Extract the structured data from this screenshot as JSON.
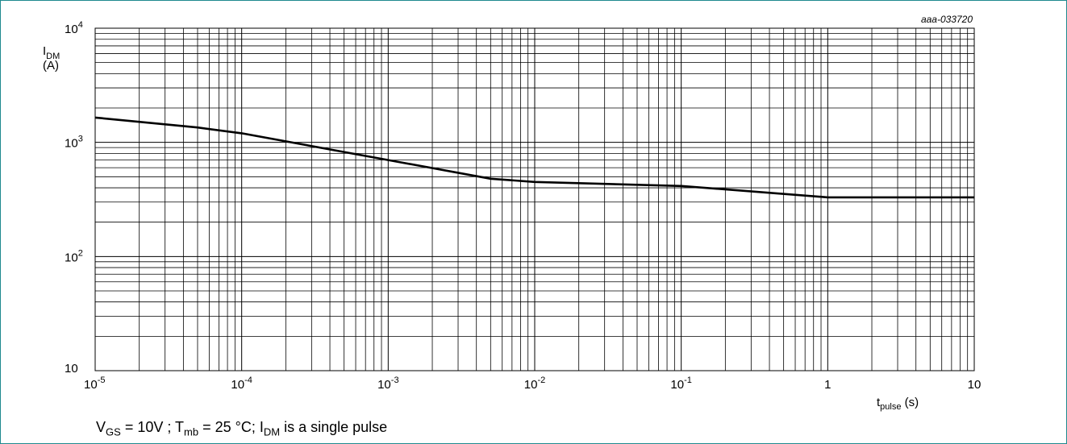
{
  "chart_data": {
    "type": "line",
    "code": "aaa-033720",
    "x_scale": "log",
    "y_scale": "log",
    "xlim": [
      1e-05,
      10
    ],
    "ylim": [
      10,
      10000
    ],
    "grid": true,
    "x_tick_labels": [
      {
        "base": "10",
        "exp": "-5"
      },
      {
        "base": "10",
        "exp": "-4"
      },
      {
        "base": "10",
        "exp": "-3"
      },
      {
        "base": "10",
        "exp": "-2"
      },
      {
        "base": "10",
        "exp": "-1"
      },
      {
        "base": "1",
        "exp": ""
      },
      {
        "base": "10",
        "exp": ""
      }
    ],
    "y_tick_labels": [
      {
        "base": "10",
        "exp": ""
      },
      {
        "base": "10",
        "exp": "2"
      },
      {
        "base": "10",
        "exp": "3"
      },
      {
        "base": "10",
        "exp": "4"
      }
    ],
    "ylabel": {
      "main": "I",
      "sub": "DM",
      "unit": "(A)"
    },
    "xlabel": {
      "main": "t",
      "sub": "pulse",
      "unit": " (s)"
    },
    "series": [
      {
        "x": [
          1e-05,
          5e-05,
          0.0001,
          0.001,
          0.005,
          0.01,
          0.1,
          1,
          10
        ],
        "y": [
          1650,
          1350,
          1200,
          700,
          480,
          450,
          415,
          330,
          330
        ]
      }
    ]
  },
  "caption": [
    {
      "t": "V"
    },
    {
      "t": "GS",
      "sub": true
    },
    {
      "t": " = 10V ; T"
    },
    {
      "t": "mb",
      "sub": true
    },
    {
      "t": " = 25 °C; I"
    },
    {
      "t": "DM",
      "sub": true
    },
    {
      "t": " is a single pulse"
    }
  ]
}
